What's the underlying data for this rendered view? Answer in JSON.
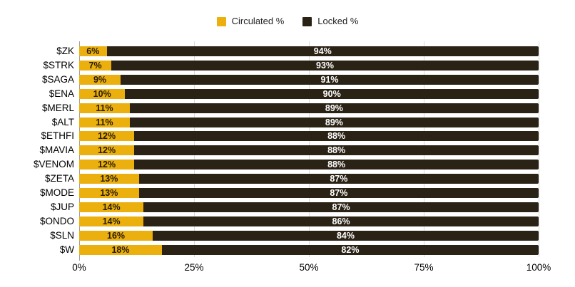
{
  "legend": {
    "items": [
      {
        "label": "Circulated %",
        "color": "#EBAF0E"
      },
      {
        "label": "Locked %",
        "color": "#2B2216"
      }
    ]
  },
  "chart_data": {
    "type": "bar",
    "orientation": "horizontal",
    "stacked": true,
    "title": "",
    "xlabel": "",
    "ylabel": "",
    "categories": [
      "$ZK",
      "$STRK",
      "$SAGA",
      "$ENA",
      "$MERL",
      "$ALT",
      "$ETHFI",
      "$MAVIA",
      "$VENOM",
      "$ZETA",
      "$MODE",
      "$JUP",
      "$ONDO",
      "$SLN",
      "$W"
    ],
    "series": [
      {
        "name": "Circulated %",
        "color": "#EBAF0E",
        "values": [
          6,
          7,
          9,
          10,
          11,
          11,
          12,
          12,
          12,
          13,
          13,
          14,
          14,
          16,
          18
        ],
        "labels": [
          "6%",
          "7%",
          "9%",
          "10%",
          "11%",
          "11%",
          "12%",
          "12%",
          "12%",
          "13%",
          "13%",
          "14%",
          "14%",
          "16%",
          "18%"
        ]
      },
      {
        "name": "Locked %",
        "color": "#2B2216",
        "values": [
          94,
          93,
          91,
          90,
          89,
          89,
          88,
          88,
          88,
          87,
          87,
          87,
          86,
          84,
          82
        ],
        "labels": [
          "94%",
          "93%",
          "91%",
          "90%",
          "89%",
          "89%",
          "88%",
          "88%",
          "88%",
          "87%",
          "87%",
          "87%",
          "86%",
          "84%",
          "82%"
        ]
      }
    ],
    "x_ticks": [
      "0%",
      "25%",
      "50%",
      "75%",
      "100%"
    ],
    "xlim": [
      0,
      100
    ],
    "grid": true,
    "legend_position": "top"
  }
}
